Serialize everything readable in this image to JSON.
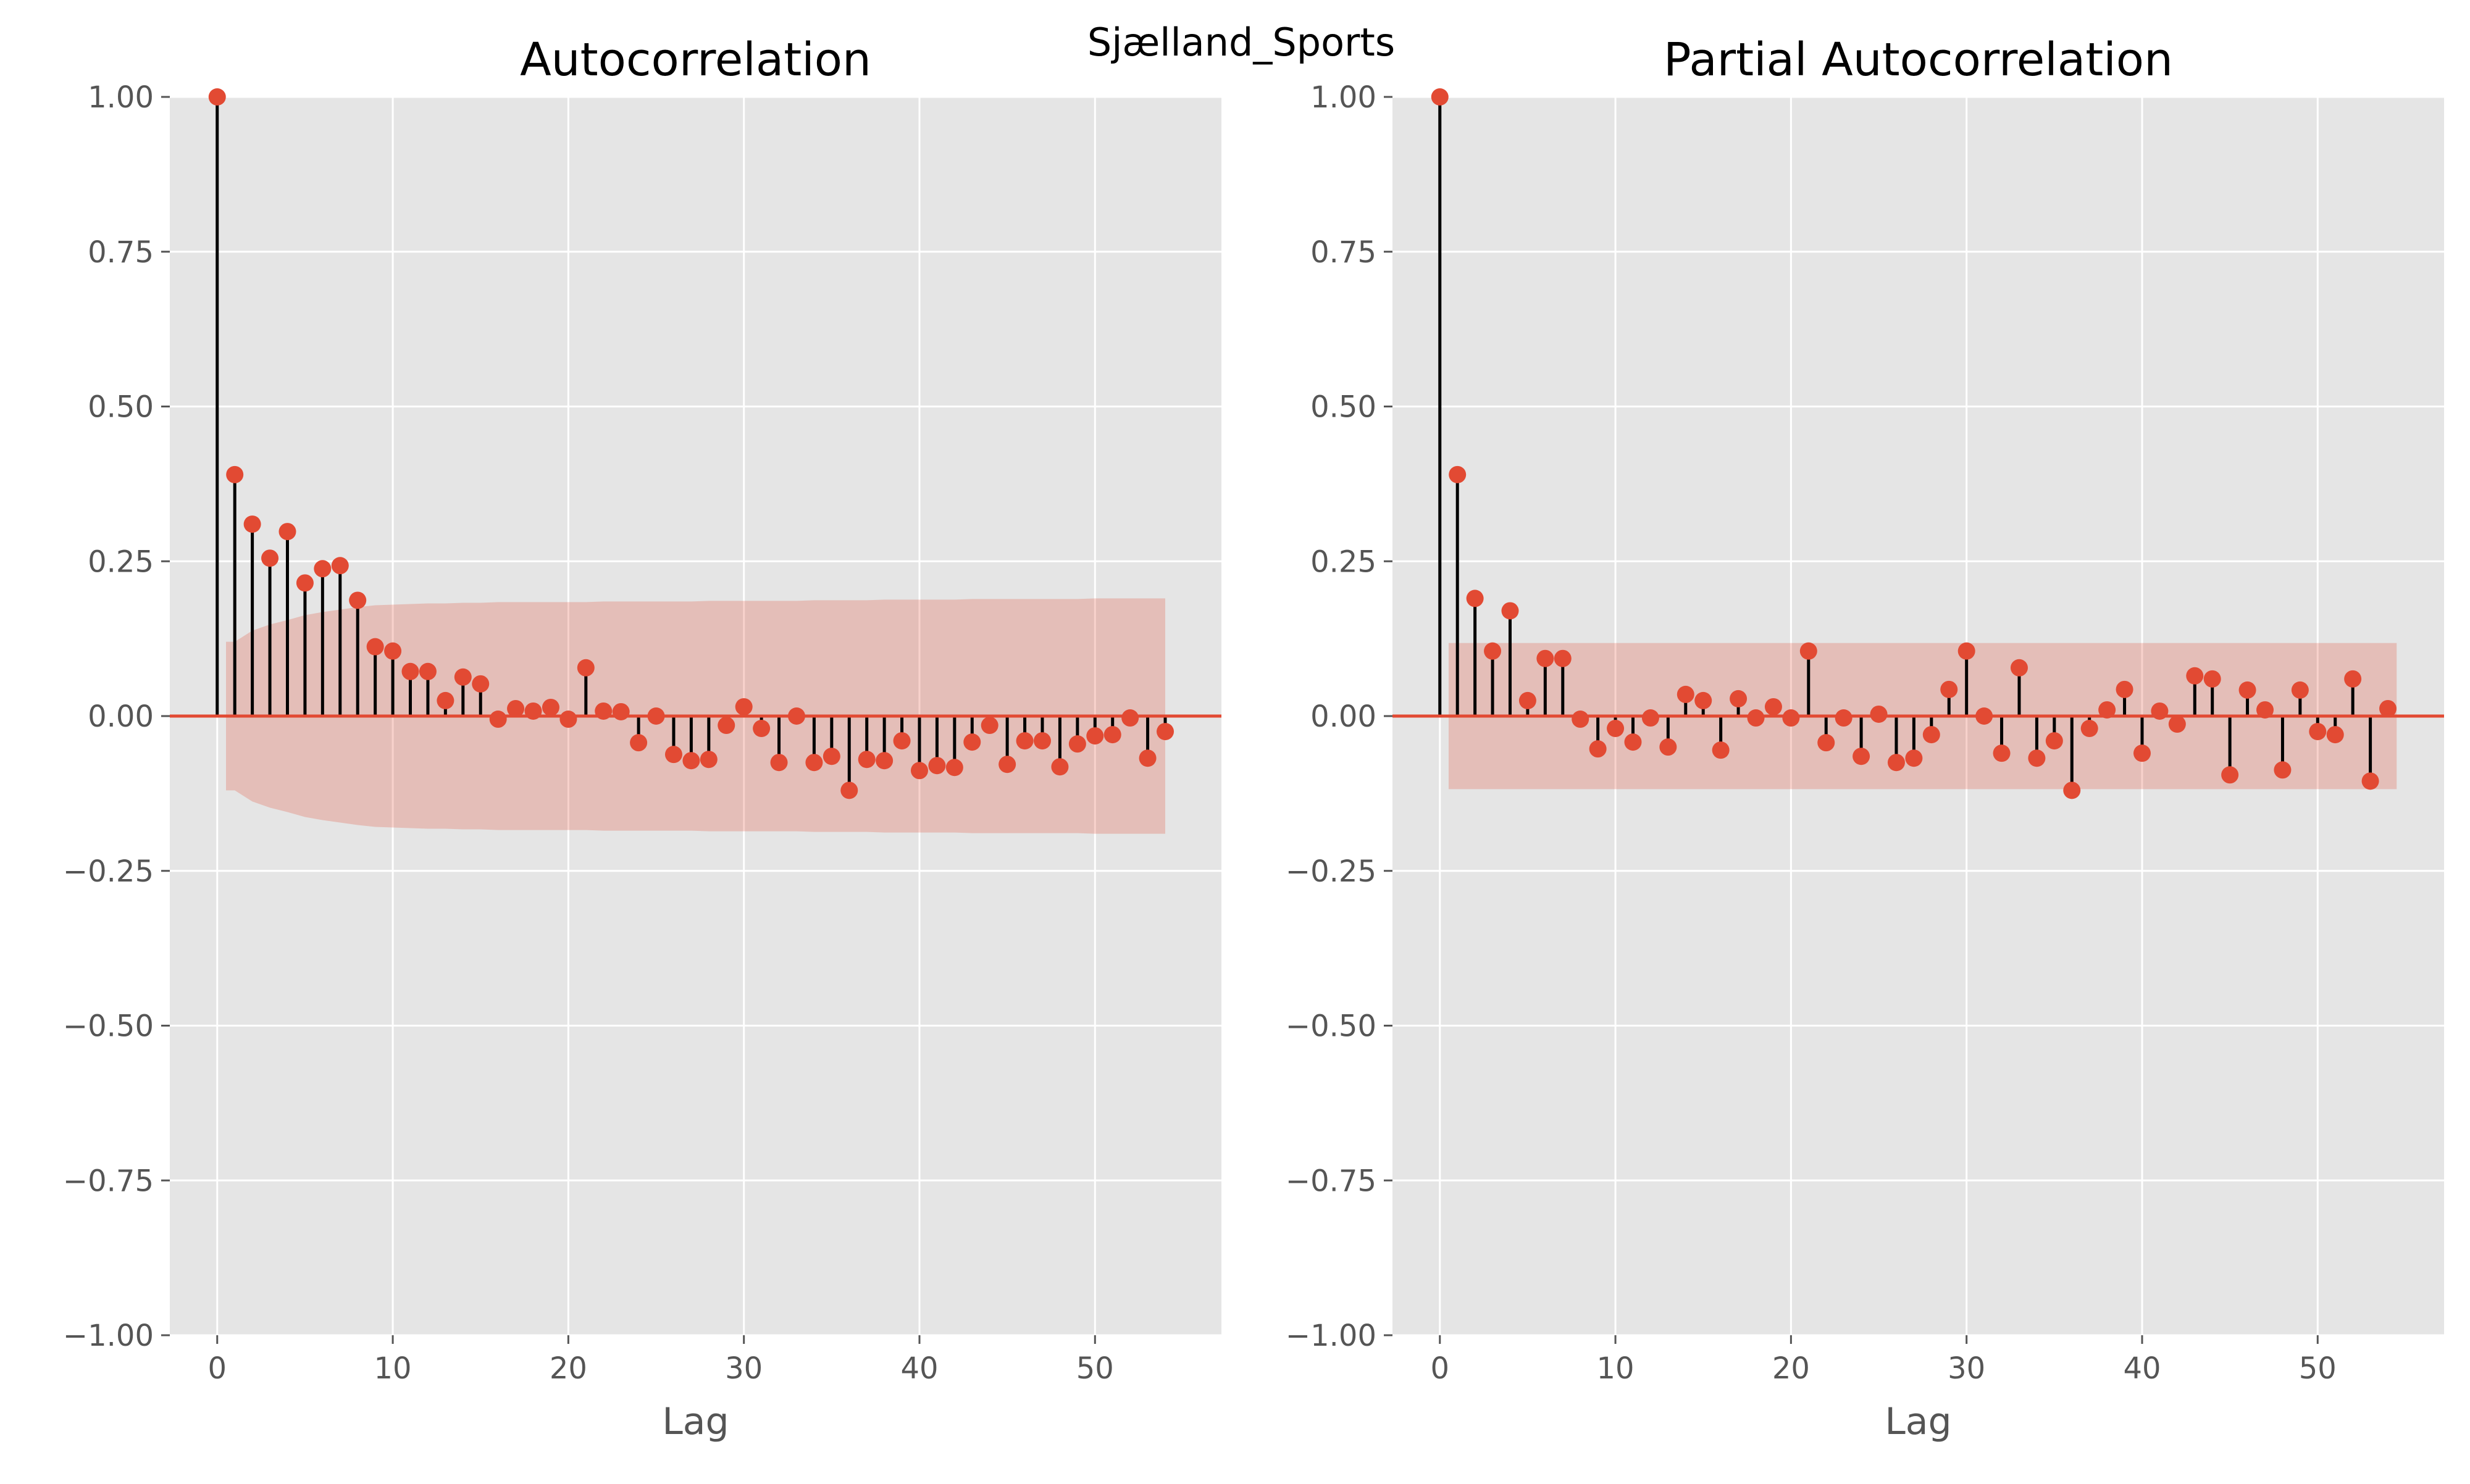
{
  "suptitle": "Sjælland_Sports",
  "colors": {
    "background": "#ffffff",
    "plot_bg": "#e5e5e5",
    "grid": "#ffffff",
    "marker": "#e24a33",
    "stem": "#000000",
    "baseline": "#e24a33",
    "band": "#e24a33",
    "tick_text": "#555555",
    "title_text": "#000000"
  },
  "chart_data": [
    {
      "type": "stem",
      "title": "Autocorrelation",
      "xlabel": "Lag",
      "ylabel": "",
      "xlim": [
        -2.7,
        57.2
      ],
      "ylim": [
        -1.0,
        1.0
      ],
      "xticks": [
        0,
        10,
        20,
        30,
        40,
        50
      ],
      "yticks": [
        -1.0,
        -0.75,
        -0.5,
        -0.25,
        0.0,
        0.25,
        0.5,
        0.75,
        1.0
      ],
      "ytick_labels": [
        "−1.00",
        "−0.75",
        "−0.50",
        "−0.25",
        "0.00",
        "0.25",
        "0.50",
        "0.75",
        "1.00"
      ],
      "grid": true,
      "lags": [
        0,
        1,
        2,
        3,
        4,
        5,
        6,
        7,
        8,
        9,
        10,
        11,
        12,
        13,
        14,
        15,
        16,
        17,
        18,
        19,
        20,
        21,
        22,
        23,
        24,
        25,
        26,
        27,
        28,
        29,
        30,
        31,
        32,
        33,
        34,
        35,
        36,
        37,
        38,
        39,
        40,
        41,
        42,
        43,
        44,
        45,
        46,
        47,
        48,
        49,
        50,
        51,
        52,
        53,
        54
      ],
      "values": [
        1.0,
        0.39,
        0.31,
        0.255,
        0.298,
        0.215,
        0.238,
        0.243,
        0.187,
        0.112,
        0.105,
        0.072,
        0.072,
        0.025,
        0.063,
        0.052,
        -0.005,
        0.012,
        0.008,
        0.014,
        -0.005,
        0.078,
        0.008,
        0.007,
        -0.043,
        0.0,
        -0.062,
        -0.072,
        -0.07,
        -0.015,
        0.015,
        -0.02,
        -0.075,
        0.0,
        -0.075,
        -0.065,
        -0.12,
        -0.07,
        -0.072,
        -0.04,
        -0.088,
        -0.08,
        -0.083,
        -0.042,
        -0.015,
        -0.078,
        -0.04,
        -0.04,
        -0.082,
        -0.045,
        -0.032,
        -0.03,
        -0.003,
        -0.068,
        -0.025
      ],
      "confint": [
        0.0,
        0.12,
        0.138,
        0.148,
        0.155,
        0.163,
        0.168,
        0.172,
        0.176,
        0.179,
        0.18,
        0.181,
        0.182,
        0.182,
        0.183,
        0.183,
        0.184,
        0.184,
        0.184,
        0.184,
        0.184,
        0.184,
        0.185,
        0.185,
        0.185,
        0.185,
        0.185,
        0.185,
        0.186,
        0.186,
        0.186,
        0.186,
        0.186,
        0.186,
        0.187,
        0.187,
        0.187,
        0.187,
        0.188,
        0.188,
        0.188,
        0.188,
        0.188,
        0.189,
        0.189,
        0.189,
        0.189,
        0.189,
        0.189,
        0.189,
        0.19,
        0.19,
        0.19,
        0.19,
        0.19
      ]
    },
    {
      "type": "stem",
      "title": "Partial Autocorrelation",
      "xlabel": "Lag",
      "ylabel": "",
      "xlim": [
        -2.7,
        57.2
      ],
      "ylim": [
        -1.0,
        1.0
      ],
      "xticks": [
        0,
        10,
        20,
        30,
        40,
        50
      ],
      "yticks": [
        -1.0,
        -0.75,
        -0.5,
        -0.25,
        0.0,
        0.25,
        0.5,
        0.75,
        1.0
      ],
      "ytick_labels": [
        "−1.00",
        "−0.75",
        "−0.50",
        "−0.25",
        "0.00",
        "0.25",
        "0.50",
        "0.75",
        "1.00"
      ],
      "grid": true,
      "lags": [
        0,
        1,
        2,
        3,
        4,
        5,
        6,
        7,
        8,
        9,
        10,
        11,
        12,
        13,
        14,
        15,
        16,
        17,
        18,
        19,
        20,
        21,
        22,
        23,
        24,
        25,
        26,
        27,
        28,
        29,
        30,
        31,
        32,
        33,
        34,
        35,
        36,
        37,
        38,
        39,
        40,
        41,
        42,
        43,
        44,
        45,
        46,
        47,
        48,
        49,
        50,
        51,
        52,
        53,
        54
      ],
      "values": [
        1.0,
        0.39,
        0.19,
        0.105,
        0.17,
        0.025,
        0.093,
        0.093,
        -0.005,
        -0.053,
        -0.02,
        -0.042,
        -0.003,
        -0.05,
        0.035,
        0.025,
        -0.055,
        0.028,
        -0.003,
        0.015,
        -0.003,
        0.105,
        -0.043,
        -0.003,
        -0.065,
        0.003,
        -0.075,
        -0.068,
        -0.03,
        0.043,
        0.105,
        0.0,
        -0.06,
        0.078,
        -0.068,
        -0.04,
        -0.12,
        -0.02,
        0.01,
        0.043,
        -0.06,
        0.008,
        -0.013,
        0.065,
        0.06,
        -0.095,
        0.042,
        0.01,
        -0.087,
        0.042,
        -0.025,
        -0.03,
        0.06,
        -0.105,
        0.012
      ],
      "confint_const": 0.118
    }
  ]
}
